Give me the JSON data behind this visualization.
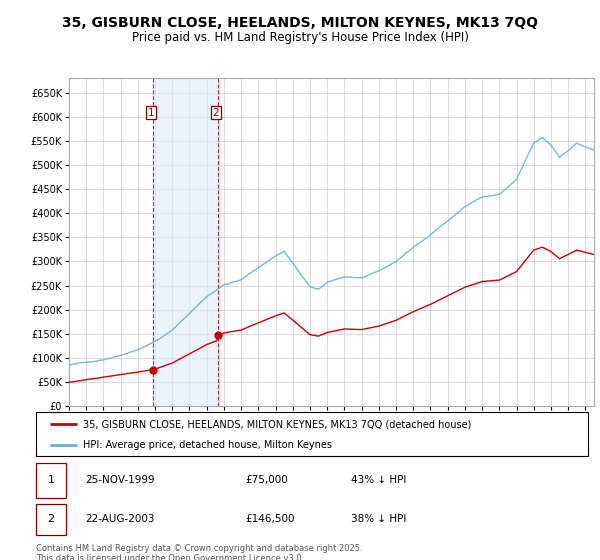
{
  "title_line1": "35, GISBURN CLOSE, HEELANDS, MILTON KEYNES, MK13 7QQ",
  "title_line2": "Price paid vs. HM Land Registry's House Price Index (HPI)",
  "ylabel_ticks": [
    "£0",
    "£50K",
    "£100K",
    "£150K",
    "£200K",
    "£250K",
    "£300K",
    "£350K",
    "£400K",
    "£450K",
    "£500K",
    "£550K",
    "£600K",
    "£650K"
  ],
  "ytick_values": [
    0,
    50000,
    100000,
    150000,
    200000,
    250000,
    300000,
    350000,
    400000,
    450000,
    500000,
    550000,
    600000,
    650000
  ],
  "ylim": [
    0,
    680000
  ],
  "purchase1_price": 75000,
  "purchase2_price": 146500,
  "purchase1_x": 1999.9,
  "purchase2_x": 2003.65,
  "hpi_color": "#6baed6",
  "property_color": "#cc0000",
  "background_color": "#ffffff",
  "grid_color": "#cccccc",
  "shade_color": "#ddeeff",
  "legend_label1": "35, GISBURN CLOSE, HEELANDS, MILTON KEYNES, MK13 7QQ (detached house)",
  "legend_label2": "HPI: Average price, detached house, Milton Keynes",
  "xmin": 1995.0,
  "xmax": 2025.5,
  "hpi_knots_x": [
    1995.0,
    1996.0,
    1997.0,
    1998.0,
    1999.0,
    2000.0,
    2001.0,
    2002.0,
    2003.0,
    2004.0,
    2005.0,
    2006.0,
    2007.0,
    2007.5,
    2008.0,
    2009.0,
    2009.5,
    2010.0,
    2011.0,
    2012.0,
    2013.0,
    2014.0,
    2015.0,
    2016.0,
    2017.0,
    2018.0,
    2019.0,
    2020.0,
    2021.0,
    2022.0,
    2022.5,
    2023.0,
    2023.5,
    2024.0,
    2024.5,
    2025.5
  ],
  "hpi_knots_y": [
    85000,
    90000,
    97000,
    107000,
    120000,
    137000,
    160000,
    195000,
    230000,
    255000,
    265000,
    290000,
    315000,
    325000,
    300000,
    250000,
    245000,
    258000,
    270000,
    268000,
    280000,
    300000,
    330000,
    355000,
    385000,
    415000,
    435000,
    440000,
    470000,
    545000,
    555000,
    540000,
    515000,
    530000,
    545000,
    530000
  ]
}
